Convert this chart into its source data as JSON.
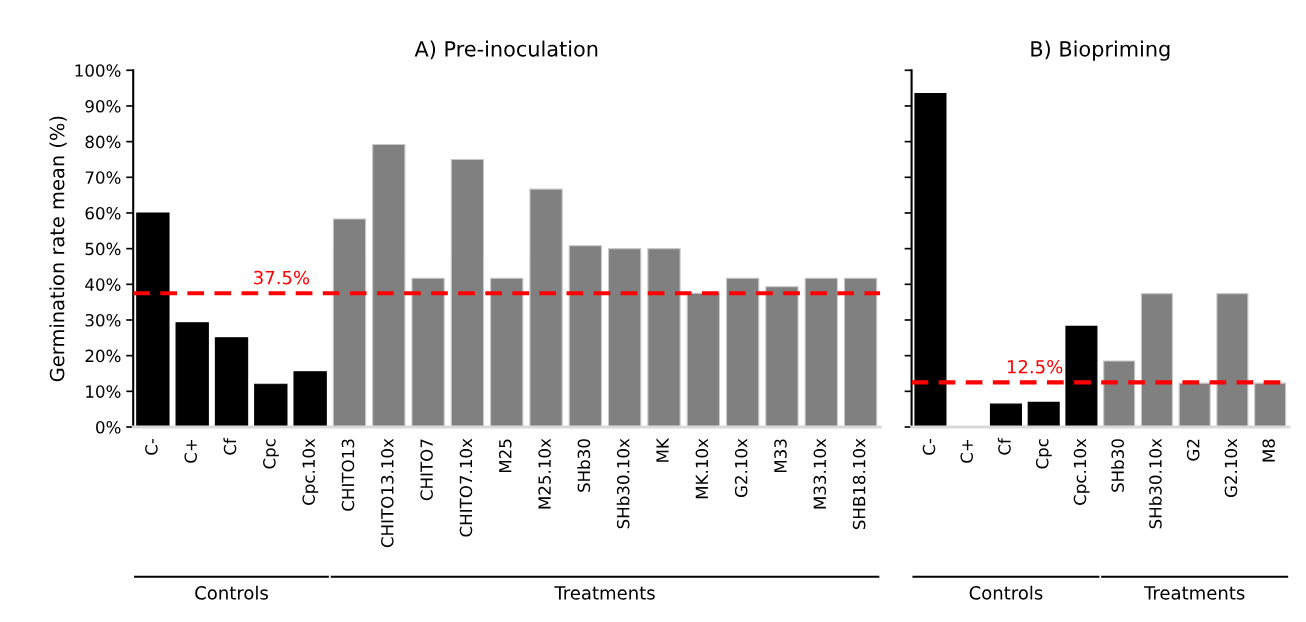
{
  "chart_data": [
    {
      "type": "bar",
      "title": "A) Pre-inoculation",
      "ylabel": "Germination rate mean (%)",
      "categories": [
        "C-",
        "C+",
        "Cf",
        "Cpc",
        "Cpc.10x",
        "CHITO13",
        "CHITO13.10x",
        "CHITO7",
        "CHITO7.10x",
        "M25",
        "M25.10x",
        "SHb30",
        "SHb30.10x",
        "MK",
        "MK.10x",
        "G2.10x",
        "M33",
        "M33.10x",
        "SHB18.10x"
      ],
      "values": [
        60,
        29.2,
        25,
        12,
        15.5,
        58.3,
        79.2,
        41.7,
        75,
        41.7,
        66.7,
        50.8,
        50,
        50,
        37.5,
        41.7,
        39.3,
        41.7,
        41.7
      ],
      "colors": [
        "#000000",
        "#000000",
        "#000000",
        "#000000",
        "#000000",
        "#808080",
        "#808080",
        "#808080",
        "#808080",
        "#808080",
        "#808080",
        "#808080",
        "#808080",
        "#808080",
        "#808080",
        "#808080",
        "#808080",
        "#808080",
        "#808080"
      ],
      "ylim": [
        0,
        100
      ],
      "yticks": [
        {
          "value": 0,
          "label": "0%"
        },
        {
          "value": 10,
          "label": "10%"
        },
        {
          "value": 20,
          "label": "20%"
        },
        {
          "value": 30,
          "label": "30%"
        },
        {
          "value": 40,
          "label": "40%"
        },
        {
          "value": 50,
          "label": "50%"
        },
        {
          "value": 60,
          "label": "60%"
        },
        {
          "value": 70,
          "label": "70%"
        },
        {
          "value": 80,
          "label": "80%"
        },
        {
          "value": 90,
          "label": "90%"
        },
        {
          "value": 100,
          "label": "100%"
        }
      ],
      "ref_lines": [
        {
          "axis": "y",
          "value": 37.5,
          "label": "37.5%",
          "color": "#ff0000",
          "line_style": "dashed"
        }
      ],
      "annotations": [
        "Controls",
        "Treatments"
      ],
      "grid": false,
      "legend": false
    },
    {
      "type": "bar",
      "title": "B) Biopriming",
      "categories": [
        "C-",
        "C+",
        "Cf",
        "Cpc",
        "Cpc.10x",
        "SHb30",
        "SHb30.10x",
        "G2",
        "G2.10x",
        "M8"
      ],
      "values": [
        93.5,
        0,
        6.4,
        6.9,
        28.2,
        18.5,
        37.4,
        12.3,
        37.4,
        12.3
      ],
      "colors": [
        "#000000",
        "#000000",
        "#000000",
        "#000000",
        "#000000",
        "#808080",
        "#808080",
        "#808080",
        "#808080",
        "#808080"
      ],
      "ylim": [
        0,
        100
      ],
      "yticks": [
        {
          "value": 0,
          "label": null
        },
        {
          "value": 10,
          "label": null
        },
        {
          "value": 20,
          "label": null
        },
        {
          "value": 30,
          "label": null
        },
        {
          "value": 40,
          "label": null
        },
        {
          "value": 50,
          "label": null
        },
        {
          "value": 60,
          "label": null
        },
        {
          "value": 70,
          "label": null
        },
        {
          "value": 80,
          "label": null
        },
        {
          "value": 90,
          "label": null
        },
        {
          "value": 100,
          "label": null
        }
      ],
      "tick_labels": "x",
      "ref_lines": [
        {
          "axis": "y",
          "value": 12.5,
          "label": "12.5%",
          "color": "#ff0000",
          "line_style": "dashed"
        }
      ],
      "annotations": [
        "Controls",
        "Treatments"
      ],
      "grid": false,
      "legend": false
    }
  ]
}
